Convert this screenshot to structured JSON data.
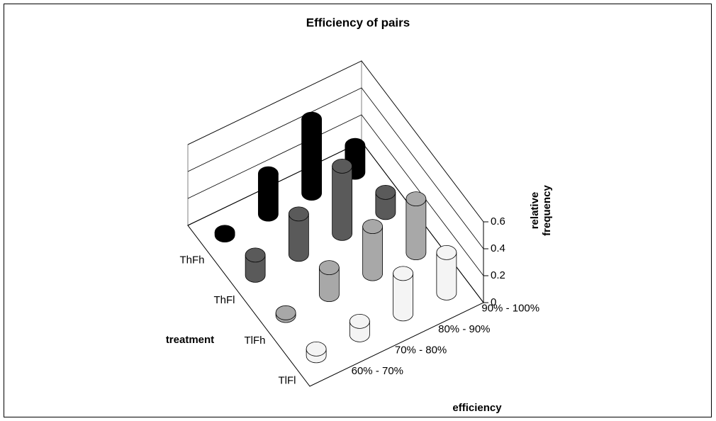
{
  "chart_data": {
    "type": "bar3d",
    "title": "Efficiency of pairs",
    "x_label": "efficiency",
    "series_label": "treatment",
    "y_label": "relative frequency",
    "categories": [
      "60% - 70%",
      "70% - 80%",
      "80% - 90%",
      "90% - 100%"
    ],
    "series": [
      {
        "name": "ThFh",
        "color": "#000000",
        "values": [
          0.02,
          0.3,
          0.55,
          0.2
        ]
      },
      {
        "name": "ThFl",
        "color": "#5a5a5a",
        "values": [
          0.15,
          0.3,
          0.5,
          0.15
        ]
      },
      {
        "name": "TlFh",
        "color": "#a8a8a8",
        "values": [
          0.02,
          0.2,
          0.35,
          0.4
        ]
      },
      {
        "name": "TlFl",
        "color": "#f4f4f4",
        "values": [
          0.05,
          0.1,
          0.3,
          0.3
        ]
      }
    ],
    "ylim": [
      0,
      0.6
    ],
    "yticks": [
      0,
      0.2,
      0.4,
      0.6
    ]
  }
}
